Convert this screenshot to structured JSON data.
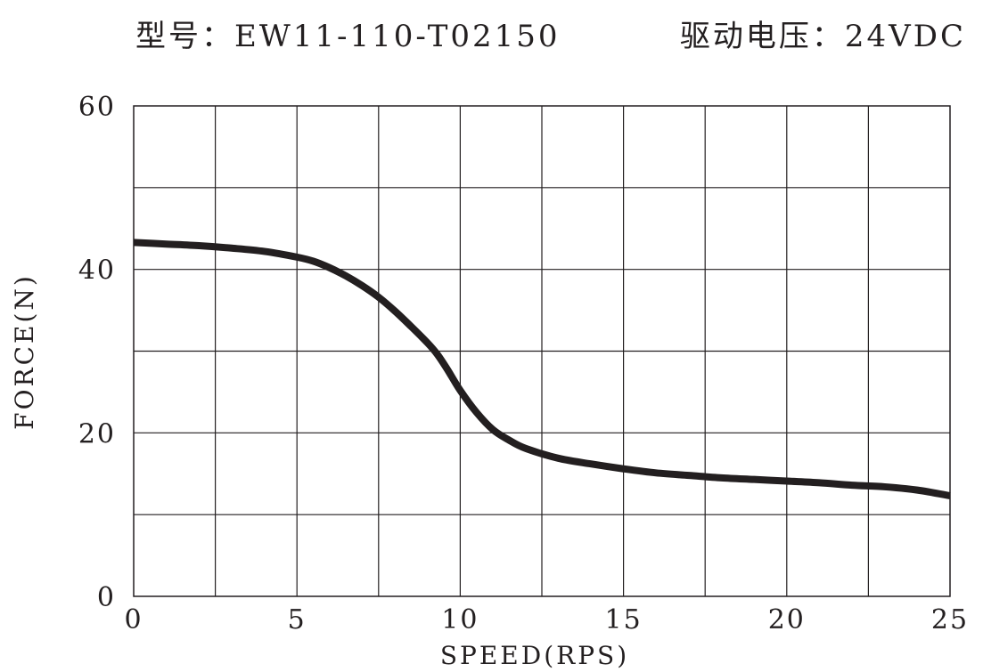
{
  "header": {
    "model_label": "型号：EW11-110-T02150",
    "voltage_label": "驱动电压：24VDC"
  },
  "chart_data": {
    "type": "line",
    "title": "",
    "xlabel": "SPEED(RPS)",
    "ylabel": "FORCE(N)",
    "xlim": [
      0,
      25
    ],
    "ylim": [
      0,
      60
    ],
    "x_ticks": [
      0,
      5,
      10,
      15,
      20,
      25
    ],
    "y_ticks": [
      0,
      20,
      40,
      60
    ],
    "x_grid_step": 2.5,
    "y_grid_step": 10,
    "grid": true,
    "line_color": "#231f20",
    "series": [
      {
        "x": [
          0,
          1,
          2,
          3,
          4,
          5,
          5.5,
          6,
          6.5,
          7,
          7.5,
          8,
          8.5,
          9,
          9.3,
          9.6,
          10,
          10.5,
          11,
          11.5,
          12,
          13,
          14,
          15,
          16,
          17,
          18,
          19,
          20,
          21,
          22,
          23,
          24,
          25
        ],
        "y": [
          43.3,
          43.1,
          42.9,
          42.6,
          42.2,
          41.5,
          41.0,
          40.2,
          39.2,
          38.0,
          36.6,
          34.9,
          33.0,
          31.0,
          29.6,
          27.8,
          25.2,
          22.5,
          20.4,
          19.1,
          18.1,
          16.9,
          16.2,
          15.6,
          15.1,
          14.8,
          14.5,
          14.3,
          14.1,
          13.9,
          13.6,
          13.4,
          13.0,
          12.3
        ]
      }
    ]
  }
}
